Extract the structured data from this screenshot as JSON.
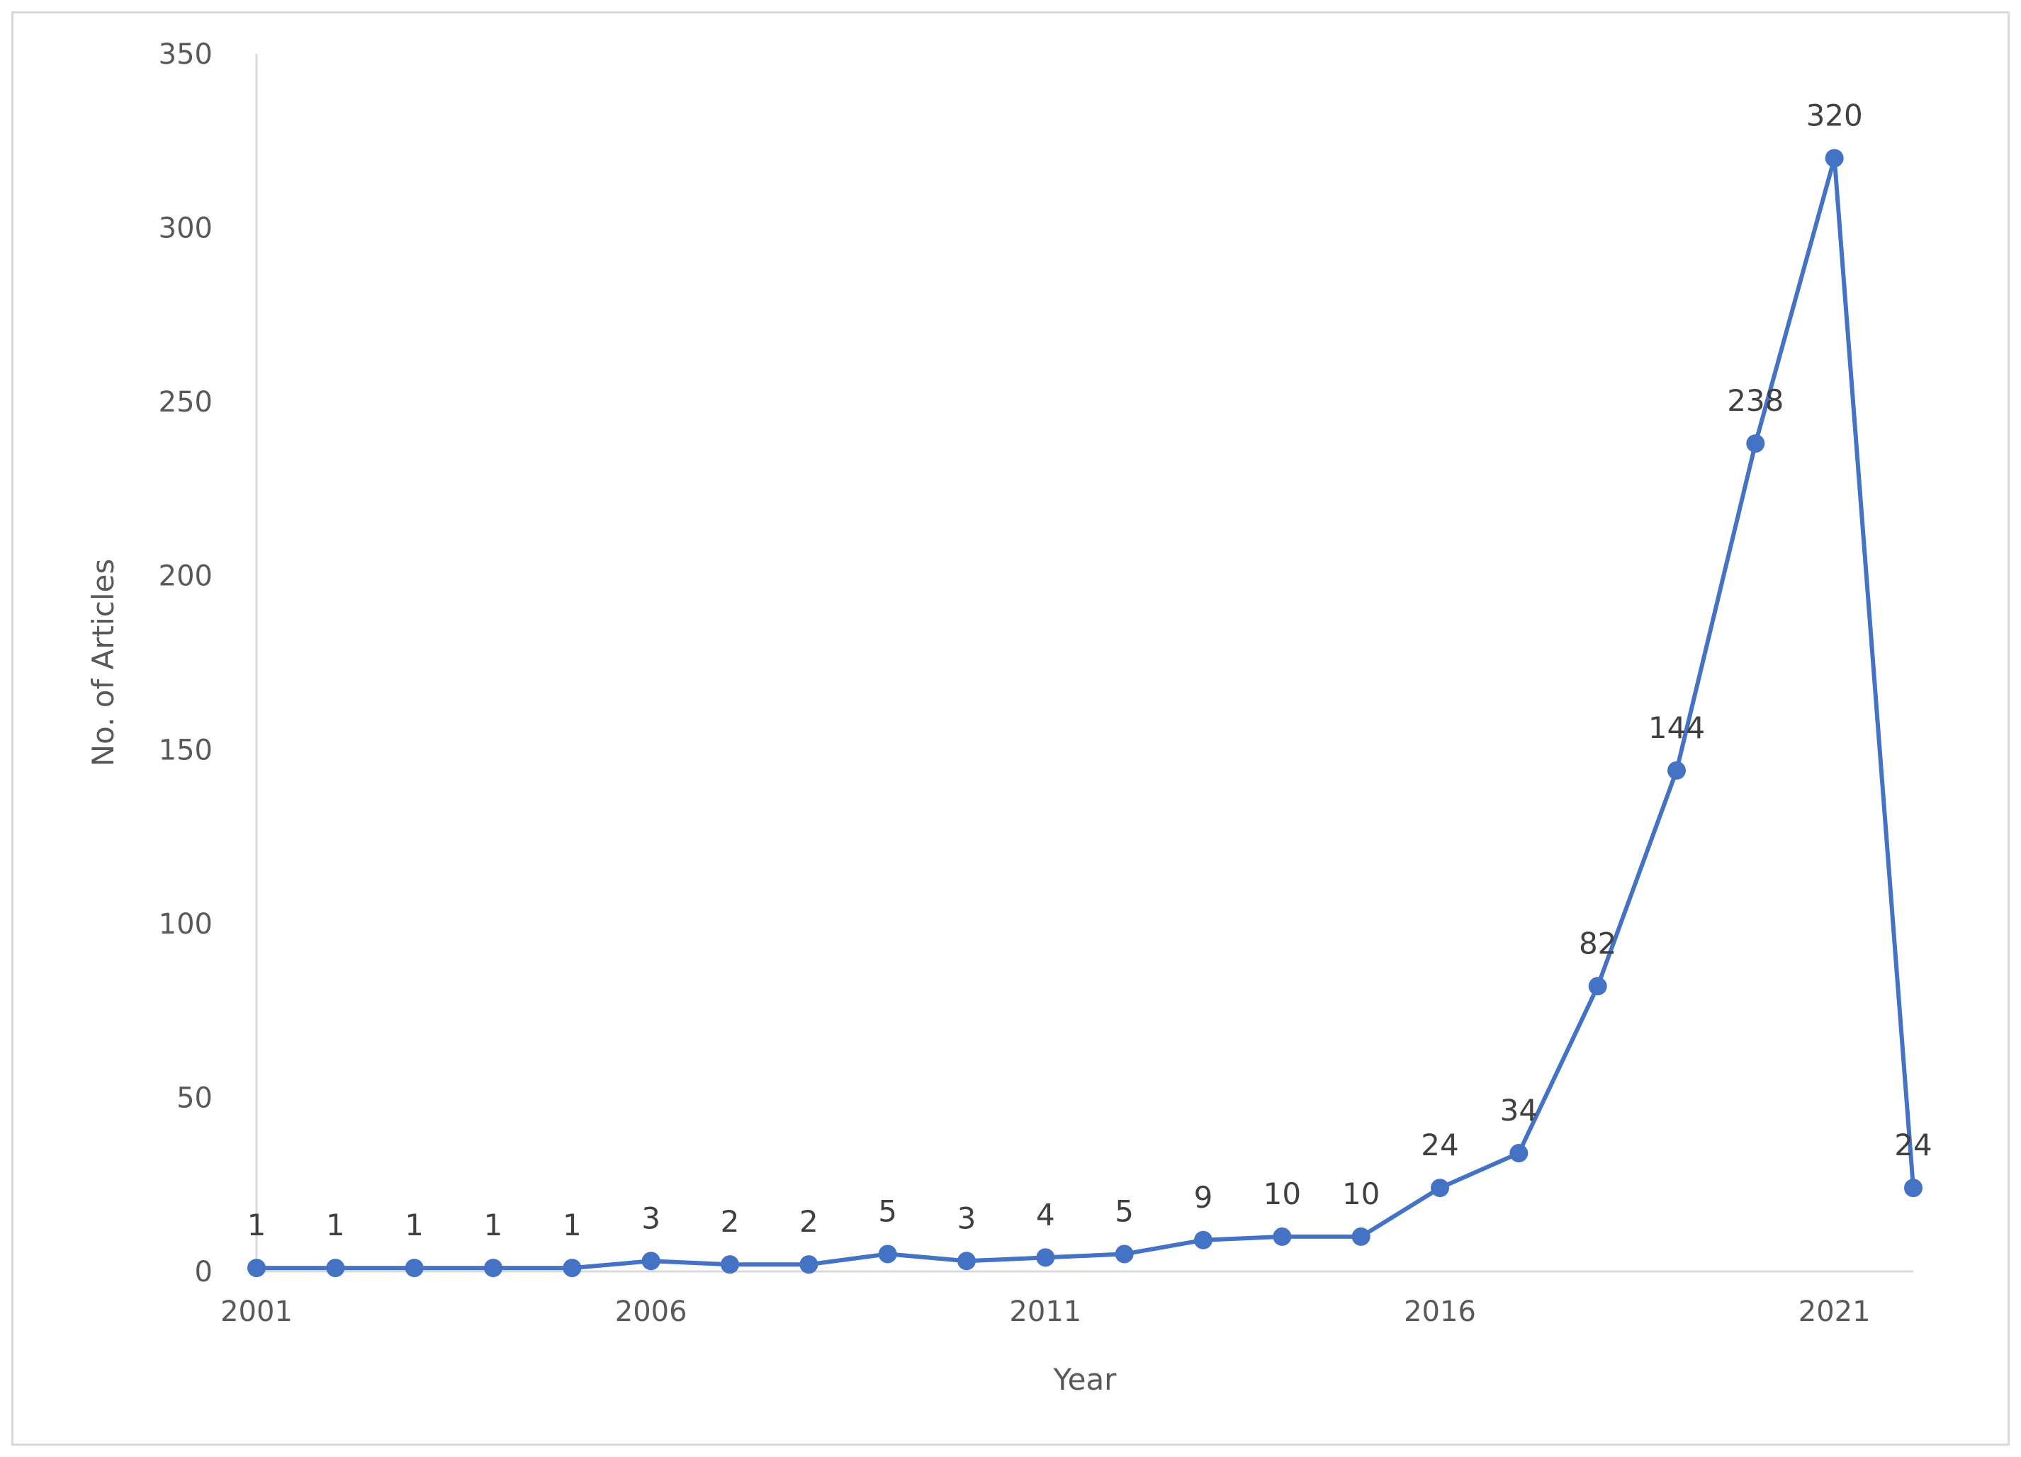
{
  "chart_data": {
    "type": "line",
    "xlabel": "Year",
    "ylabel": "No. of Articles",
    "ylim": [
      0,
      350
    ],
    "xlim": [
      2001,
      2022
    ],
    "yticks": [
      0,
      50,
      100,
      150,
      200,
      250,
      300,
      350
    ],
    "xticks": [
      2001,
      2006,
      2011,
      2016,
      2021
    ],
    "grid": false,
    "legend": "none",
    "series": [
      {
        "color": "#4472c4",
        "x": [
          2001,
          2002,
          2003,
          2004,
          2005,
          2006,
          2007,
          2008,
          2009,
          2010,
          2011,
          2012,
          2013,
          2014,
          2015,
          2016,
          2017,
          2018,
          2019,
          2020,
          2021,
          2022
        ],
        "values": [
          1,
          1,
          1,
          1,
          1,
          3,
          2,
          2,
          5,
          3,
          4,
          5,
          9,
          10,
          10,
          24,
          34,
          82,
          144,
          238,
          320,
          24
        ]
      }
    ]
  }
}
